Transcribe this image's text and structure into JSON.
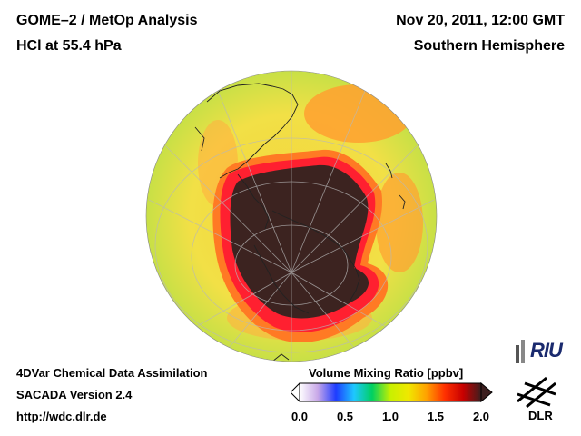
{
  "header": {
    "title_line1": "GOME–2 / MetOp Analysis",
    "title_line2": "HCl at 55.4 hPa",
    "date": "Nov 20, 2011, 12:00 GMT",
    "region": "Southern Hemisphere"
  },
  "footer": {
    "line1": "4DVar Chemical Data Assimilation",
    "line2": "SACADA Version 2.4",
    "line3": "http://wdc.dlr.de"
  },
  "colorbar": {
    "title": "Volume Mixing Ratio [ppbv]",
    "ticks": [
      "0.0",
      "0.5",
      "1.0",
      "1.5",
      "2.0"
    ],
    "range": [
      0.0,
      2.0
    ],
    "colors": [
      "#ffffff",
      "#c8a8e8",
      "#1e3cff",
      "#1ec8ff",
      "#00d060",
      "#c8f000",
      "#f0e800",
      "#ffa000",
      "#ff3000",
      "#c80000",
      "#3c1e1e"
    ]
  },
  "map": {
    "projection": "orthographic south polar",
    "background_color": "#f2e046",
    "edge_color": "#c8e046",
    "ring_color": "#ff6a1e",
    "vortex_edge_color": "#ff1e28",
    "vortex_core_color": "#3c2320"
  },
  "logos": {
    "riu": "RIU",
    "dlr": "DLR"
  }
}
